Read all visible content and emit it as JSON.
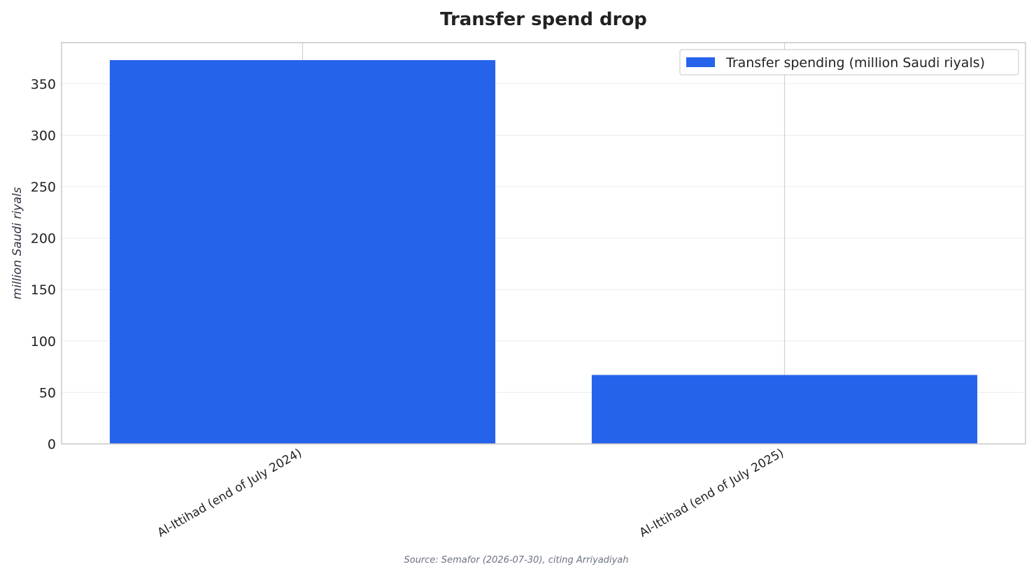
{
  "chart_data": {
    "type": "bar",
    "title": "Transfer spend drop",
    "categories": [
      "Al-Ittihad (end of July 2024)",
      "Al-Ittihad (end of July 2025)"
    ],
    "series": [
      {
        "name": "Transfer spending (million Saudi riyals)",
        "values": [
          373,
          67
        ],
        "color": "#2563eb"
      }
    ],
    "xlabel": "",
    "ylabel": "million Saudi riyals",
    "ylim": [
      0,
      390
    ],
    "yticks": [
      0,
      50,
      100,
      150,
      200,
      250,
      300,
      350
    ],
    "grid": true,
    "legend_position": "top-right",
    "source": "Source: Semafor (2026-07-30), citing Arriyadiyah"
  }
}
